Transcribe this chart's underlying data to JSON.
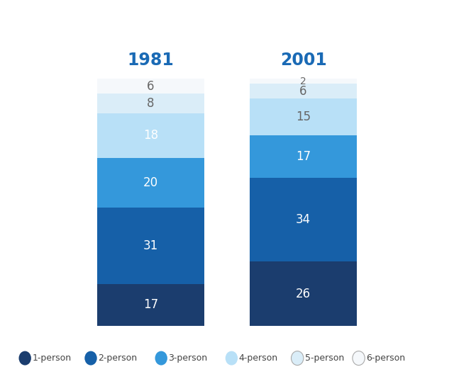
{
  "title_1981": "1981",
  "title_2001": "2001",
  "title_color": "#1a6ab5",
  "categories": [
    "1-person",
    "2-person",
    "3-person",
    "4-person",
    "5-person",
    "6-person"
  ],
  "colors_from_bottom": [
    "#1b3d6e",
    "#1660a8",
    "#3498db",
    "#b8e0f7",
    "#daedf8",
    "#f5f8fb"
  ],
  "values_1981": [
    17,
    31,
    20,
    18,
    8,
    6
  ],
  "values_2001": [
    26,
    34,
    17,
    15,
    6,
    2
  ],
  "background_color": "#ffffff",
  "text_dark": "#ffffff",
  "text_light": "#666666",
  "legend_colors": [
    "#1b3d6e",
    "#1660a8",
    "#3498db",
    "#b8e0f7",
    "#daedf8",
    "#f5f8fb"
  ],
  "legend_labels": [
    "1-person",
    "2-person",
    "3-person",
    "4-person",
    "5-person",
    "6-person"
  ]
}
